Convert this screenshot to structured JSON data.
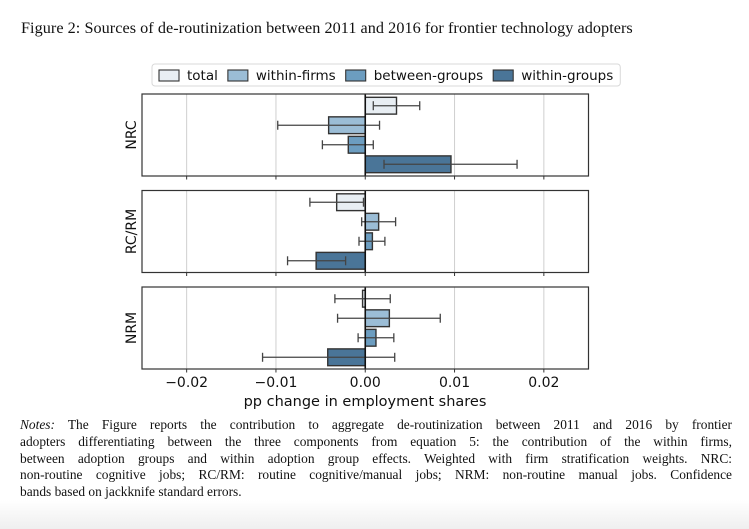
{
  "figure": {
    "caption": "Figure 2: Sources of de-routinization between 2011 and 2016 for frontier technology adopters",
    "notes_label": "Notes:",
    "notes_lines": [
      " The Figure reports the contribution to aggregate de-routinization between 2011 and 2016 by frontier",
      "adopters differentiating between the three components from equation 5: the contribution of the within firms,",
      "between adoption groups and within adoption group effects. Weighted with firm stratification weights. NRC:",
      "non-routine cognitive jobs; RC/RM: routine cognitive/manual jobs; NRM: non-routine manual jobs. Confidence",
      "bands based on jackknife standard errors."
    ]
  },
  "chart_data": {
    "type": "bar",
    "orientation": "horizontal",
    "panels": [
      "NRC",
      "RC/RM",
      "NRM"
    ],
    "xlabel": "pp change in employment shares",
    "xlim": [
      -0.025,
      0.025
    ],
    "xticks": [
      -0.02,
      -0.01,
      0.0,
      0.01,
      0.02
    ],
    "xtick_labels": [
      "−0.02",
      "−0.01",
      "0.00",
      "0.01",
      "0.02"
    ],
    "grid": "vertical",
    "legend_position": "top-center",
    "series": [
      {
        "name": "total",
        "color": "#e8eef3",
        "values": [
          0.0035,
          -0.0032,
          -0.0003
        ],
        "ci_low": [
          0.0009,
          -0.0062,
          -0.0034
        ],
        "ci_high": [
          0.0061,
          -0.0002,
          0.0028
        ]
      },
      {
        "name": "within-firms",
        "color": "#9bbdd6",
        "values": [
          -0.0041,
          0.0015,
          0.0027
        ],
        "ci_low": [
          -0.0098,
          -0.0004,
          -0.0031
        ],
        "ci_high": [
          0.0016,
          0.0034,
          0.0084
        ]
      },
      {
        "name": "between-groups",
        "color": "#6c9dc0",
        "values": [
          -0.0019,
          0.0008,
          0.0012
        ],
        "ci_low": [
          -0.0048,
          -0.0007,
          -0.0008
        ],
        "ci_high": [
          0.0009,
          0.0022,
          0.0032
        ]
      },
      {
        "name": "within-groups",
        "color": "#4a7598",
        "values": [
          0.0096,
          -0.0055,
          -0.0042
        ],
        "ci_low": [
          0.0021,
          -0.0087,
          -0.0115
        ],
        "ci_high": [
          0.017,
          -0.0022,
          0.0033
        ]
      }
    ]
  }
}
